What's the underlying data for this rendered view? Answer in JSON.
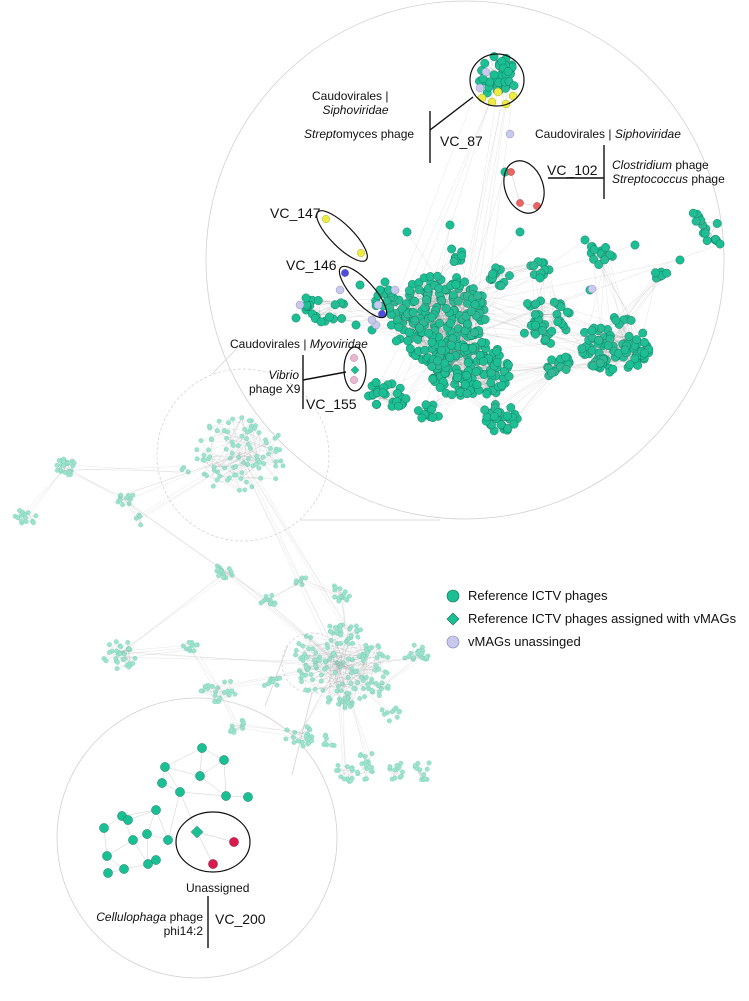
{
  "colors": {
    "reference": "#1bbf94",
    "reference_stroke": "#0e6b52",
    "reference_faded": "#9fe3cf",
    "vmag": "#c9c9ee",
    "vmag_stroke": "#7f7fb5",
    "yellow": "#ecec45",
    "blue": "#4d4de0",
    "pink": "#ecb6d3",
    "red": "#f06060",
    "crimson": "#d81b4f",
    "edge": "#9a9a9a"
  },
  "annotations": {
    "vc87": {
      "order": "Caudovirales |",
      "family": "Siphoviridae",
      "host_italic": "Strept",
      "host_rest": "omyces phage",
      "cluster": "VC_87"
    },
    "vc102": {
      "order": "Caudovirales | ",
      "family": "Siphoviridae",
      "host1_italic": "Clostridium",
      "host1_rest": " phage",
      "host2_italic": "Streptococcus",
      "host2_rest": " phage",
      "cluster": "VC_102"
    },
    "vc147": {
      "cluster": "VC_147"
    },
    "vc146": {
      "cluster": "VC_146"
    },
    "vc155": {
      "order": "Caudovirales | ",
      "family": "Myoviridae",
      "host_italic": "Vibrio",
      "host_rest": "phage X9",
      "cluster": "VC_155"
    },
    "vc200": {
      "status": "Unassigned",
      "host_italic": "Cellulophaga",
      "host_rest": " phage",
      "host_line2": "phi14:2",
      "cluster": "VC_200"
    }
  },
  "legend": {
    "items": [
      {
        "shape": "circle",
        "label": "Reference ICTV phages"
      },
      {
        "shape": "diamond",
        "label": "Reference ICTV phages assigned with vMAGs"
      },
      {
        "shape": "circle-light",
        "label": "vMAGs unassinged"
      }
    ]
  }
}
